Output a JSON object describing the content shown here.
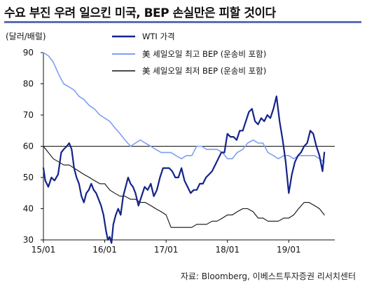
{
  "title": "수요 부진 우려 일으킨 미국, BEP 손실만은 피할 것이다",
  "unit_label": "(달러/배럴)",
  "source": "자료: Bloomberg, 이베스트투자증권 리서치센터",
  "colors": {
    "wti": "#14238a",
    "high": "#7e9ff0",
    "low": "#111111",
    "rule": "#5a6fb5"
  },
  "chart_data": {
    "type": "line",
    "title": "수요 부진 우려 일으킨 미국, BEP 손실만은 피할 것이다",
    "ylabel": "(달러/배럴)",
    "ylim": [
      30,
      90
    ],
    "yticks": [
      30,
      40,
      50,
      60,
      70,
      80,
      90
    ],
    "xlim": [
      2015.0,
      2019.75
    ],
    "xticks": [
      {
        "x": 2015.0,
        "label": "15/01"
      },
      {
        "x": 2016.0,
        "label": "16/01"
      },
      {
        "x": 2017.0,
        "label": "17/01"
      },
      {
        "x": 2018.0,
        "label": "18/01"
      },
      {
        "x": 2019.0,
        "label": "19/01"
      }
    ],
    "reference_line": 60,
    "legend_position": "top-center",
    "series": [
      {
        "name": "WTI 가격",
        "color": "#14238a",
        "x": [
          2015.0,
          2015.03,
          2015.08,
          2015.13,
          2015.18,
          2015.24,
          2015.29,
          2015.33,
          2015.38,
          2015.42,
          2015.46,
          2015.5,
          2015.54,
          2015.58,
          2015.62,
          2015.66,
          2015.7,
          2015.74,
          2015.78,
          2015.82,
          2015.86,
          2015.9,
          2015.94,
          2015.98,
          2016.02,
          2016.05,
          2016.08,
          2016.11,
          2016.14,
          2016.18,
          2016.22,
          2016.26,
          2016.3,
          2016.34,
          2016.38,
          2016.42,
          2016.46,
          2016.5,
          2016.55,
          2016.6,
          2016.65,
          2016.7,
          2016.75,
          2016.8,
          2016.85,
          2016.9,
          2016.95,
          2017.0,
          2017.05,
          2017.1,
          2017.15,
          2017.2,
          2017.25,
          2017.3,
          2017.35,
          2017.4,
          2017.45,
          2017.5,
          2017.55,
          2017.6,
          2017.65,
          2017.7,
          2017.75,
          2017.8,
          2017.85,
          2017.9,
          2017.95,
          2018.0,
          2018.05,
          2018.1,
          2018.15,
          2018.2,
          2018.25,
          2018.3,
          2018.35,
          2018.4,
          2018.45,
          2018.5,
          2018.55,
          2018.6,
          2018.65,
          2018.7,
          2018.75,
          2018.8,
          2018.85,
          2018.9,
          2018.95,
          2019.0,
          2019.05,
          2019.1,
          2019.15,
          2019.2,
          2019.25,
          2019.3,
          2019.35,
          2019.4,
          2019.45,
          2019.5,
          2019.55,
          2019.58
        ],
        "values": [
          53,
          49,
          47,
          50,
          49,
          51,
          58,
          59,
          60,
          61,
          59,
          53,
          50,
          48,
          44,
          42,
          45,
          46,
          48,
          46,
          45,
          43,
          41,
          38,
          33,
          30,
          31,
          29,
          35,
          38,
          40,
          38,
          44,
          47,
          50,
          48,
          47,
          45,
          41,
          44,
          47,
          46,
          48,
          44,
          46,
          50,
          53,
          53,
          53,
          52,
          50,
          50,
          53,
          49,
          47,
          45,
          46,
          46,
          48,
          48,
          50,
          51,
          52,
          54,
          56,
          58,
          58,
          64,
          63,
          63,
          62,
          65,
          65,
          68,
          71,
          72,
          68,
          67,
          69,
          68,
          70,
          69,
          72,
          76,
          68,
          62,
          55,
          45,
          51,
          55,
          57,
          58,
          60,
          61,
          65,
          64,
          60,
          57,
          52,
          58
        ]
      },
      {
        "name": "美 셰일오일 최고 BEP (운송비 포함)",
        "color": "#7e9ff0",
        "x": [
          2015.0,
          2015.08,
          2015.16,
          2015.25,
          2015.33,
          2015.42,
          2015.5,
          2015.58,
          2015.66,
          2015.75,
          2015.83,
          2015.92,
          2016.0,
          2016.08,
          2016.16,
          2016.25,
          2016.33,
          2016.42,
          2016.5,
          2016.58,
          2016.66,
          2016.75,
          2016.83,
          2016.92,
          2017.0,
          2017.08,
          2017.16,
          2017.25,
          2017.33,
          2017.42,
          2017.5,
          2017.58,
          2017.66,
          2017.75,
          2017.83,
          2017.92,
          2018.0,
          2018.08,
          2018.16,
          2018.25,
          2018.33,
          2018.42,
          2018.5,
          2018.58,
          2018.66,
          2018.75,
          2018.83,
          2018.92,
          2019.0,
          2019.08,
          2019.16,
          2019.25,
          2019.33,
          2019.42,
          2019.5,
          2019.58
        ],
        "values": [
          90,
          89,
          87,
          83,
          80,
          79,
          78,
          76,
          75,
          73,
          72,
          70,
          69,
          68,
          66,
          64,
          62,
          60,
          61,
          62,
          61,
          60,
          59,
          58,
          58,
          58,
          57,
          56,
          57,
          57,
          60,
          60,
          59,
          59,
          59,
          58,
          56,
          56,
          58,
          59,
          61,
          62,
          61,
          61,
          58,
          57,
          56,
          57,
          57,
          56,
          57,
          57,
          57,
          57,
          56,
          55
        ]
      },
      {
        "name": "美 셰일오일 최저 BEP (운송비 포함)",
        "color": "#111111",
        "x": [
          2015.0,
          2015.08,
          2015.16,
          2015.25,
          2015.33,
          2015.42,
          2015.5,
          2015.58,
          2015.66,
          2015.75,
          2015.83,
          2015.92,
          2016.0,
          2016.08,
          2016.16,
          2016.25,
          2016.33,
          2016.42,
          2016.5,
          2016.58,
          2016.66,
          2016.75,
          2016.83,
          2016.92,
          2017.0,
          2017.08,
          2017.16,
          2017.25,
          2017.33,
          2017.42,
          2017.5,
          2017.58,
          2017.66,
          2017.75,
          2017.83,
          2017.92,
          2018.0,
          2018.08,
          2018.16,
          2018.25,
          2018.33,
          2018.42,
          2018.5,
          2018.58,
          2018.66,
          2018.75,
          2018.83,
          2018.92,
          2019.0,
          2019.08,
          2019.16,
          2019.25,
          2019.33,
          2019.42,
          2019.5,
          2019.58
        ],
        "values": [
          60,
          58,
          56,
          55,
          54,
          54,
          53,
          52,
          51,
          50,
          49,
          48,
          48,
          46,
          45,
          44,
          44,
          43,
          43,
          42,
          42,
          41,
          40,
          39,
          38,
          34,
          34,
          34,
          34,
          34,
          35,
          35,
          35,
          36,
          36,
          37,
          38,
          38,
          39,
          40,
          40,
          39,
          37,
          37,
          36,
          36,
          36,
          37,
          37,
          38,
          40,
          42,
          42,
          41,
          40,
          38
        ]
      }
    ]
  }
}
